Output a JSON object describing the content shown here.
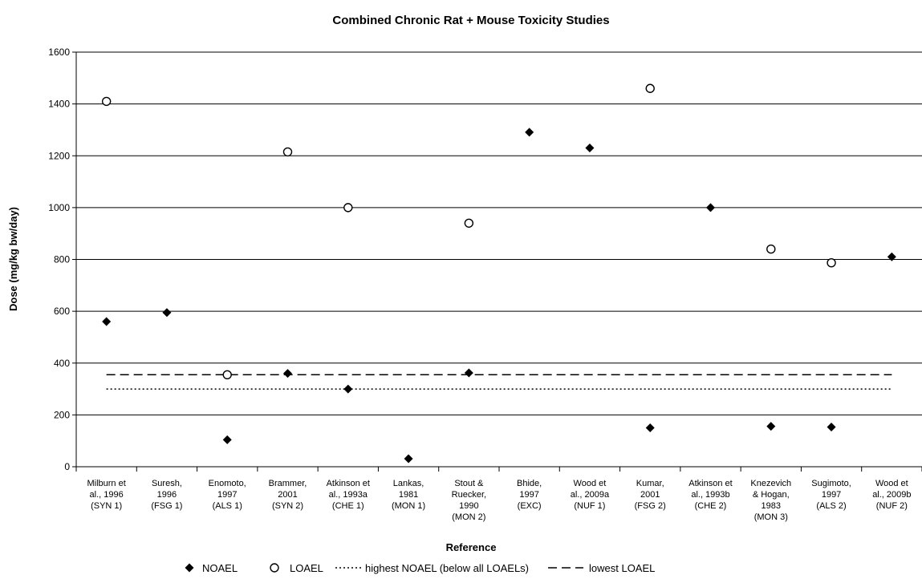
{
  "chart_data": {
    "type": "scatter",
    "title": "Combined Chronic Rat + Mouse Toxicity Studies",
    "xlabel": "Reference",
    "ylabel": "Dose (mg/kg bw/day)",
    "ylim": [
      0,
      1600
    ],
    "yticks": [
      0,
      200,
      400,
      600,
      800,
      1000,
      1200,
      1400,
      1600
    ],
    "grid": "horizontal",
    "legend_position": "bottom",
    "categories": [
      [
        "Milburn et",
        "al., 1996",
        "(SYN 1)"
      ],
      [
        "Suresh,",
        "1996",
        "(FSG 1)"
      ],
      [
        "Enomoto,",
        "1997",
        "(ALS 1)"
      ],
      [
        "Brammer,",
        "2001",
        "(SYN 2)"
      ],
      [
        "Atkinson et",
        "al., 1993a",
        "(CHE 1)"
      ],
      [
        "Lankas,",
        "1981",
        "(MON 1)"
      ],
      [
        "Stout &",
        "Ruecker,",
        "1990",
        "(MON 2)"
      ],
      [
        "Bhide,",
        "1997",
        "(EXC)"
      ],
      [
        "Wood et",
        "al., 2009a",
        "(NUF 1)"
      ],
      [
        "Kumar,",
        "2001",
        "(FSG 2)"
      ],
      [
        "Atkinson et",
        "al., 1993b",
        "(CHE 2)"
      ],
      [
        "Knezevich",
        "& Hogan,",
        "1983",
        "(MON 3)"
      ],
      [
        "Sugimoto,",
        "1997",
        "(ALS 2)"
      ],
      [
        "Wood et",
        "al., 2009b",
        "(NUF 2)"
      ]
    ],
    "series": [
      {
        "name": "NOAEL",
        "marker": "diamond",
        "values": [
          560,
          595,
          104,
          360,
          300,
          31,
          362,
          1291,
          1230,
          150,
          1000,
          156,
          153,
          810
        ]
      },
      {
        "name": "LOAEL",
        "marker": "open-circle",
        "values": [
          1410,
          null,
          355,
          1215,
          1000,
          null,
          940,
          null,
          null,
          1460,
          null,
          840,
          787,
          null
        ]
      }
    ],
    "reference_lines": [
      {
        "name": "highest NOAEL (below all LOAELs)",
        "value": 300,
        "style": "dotted"
      },
      {
        "name": "lowest LOAEL",
        "value": 355,
        "style": "dashed"
      }
    ]
  }
}
